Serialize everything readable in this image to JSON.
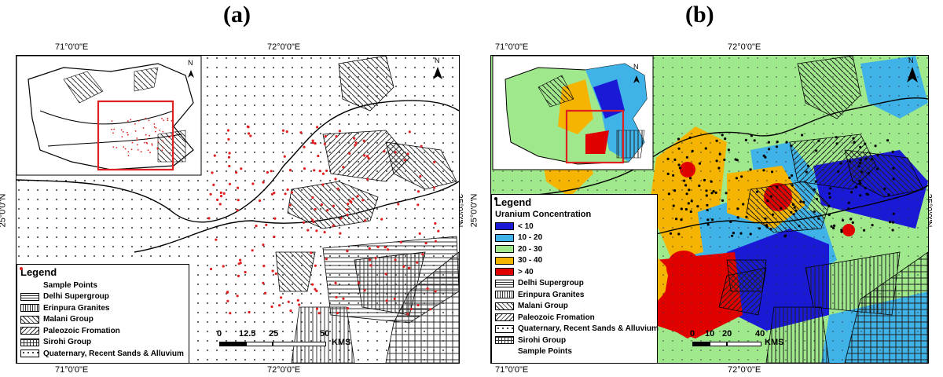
{
  "panels": [
    {
      "label": "(a)",
      "coords": {
        "lon_left": "71°0'0\"E",
        "lon_mid": "72°0'0\"E",
        "lat": "25°0'0\"N"
      },
      "legend": {
        "title": "Legend",
        "items": [
          {
            "label": "Sample Points",
            "symbol": "red-dot"
          },
          {
            "label": "Delhi Supergroup",
            "symbol": "horizontal-lines"
          },
          {
            "label": "Erinpura Granites",
            "symbol": "vertical-lines"
          },
          {
            "label": "Malani Group",
            "symbol": "back-diagonal"
          },
          {
            "label": "Paleozoic Fromation",
            "symbol": "diagonal"
          },
          {
            "label": "Sirohi Group",
            "symbol": "crosshatch"
          },
          {
            "label": "Quaternary, Recent Sands & Alluvium",
            "symbol": "dots"
          }
        ]
      },
      "scale": {
        "ticks": [
          "0",
          "12.5",
          "25",
          "50"
        ],
        "unit": "KMS"
      },
      "north": "N"
    },
    {
      "label": "(b)",
      "coords": {
        "lon_left": "71°0'0\"E",
        "lon_mid": "72°0'0\"E",
        "lat": "25°0'0\"N"
      },
      "legend": {
        "title": "Legend",
        "subtitle": "Uranium Concentration",
        "concentration": [
          {
            "label": "< 10",
            "color": "#1a1ad6"
          },
          {
            "label": "10 - 20",
            "color": "#3fb2e8"
          },
          {
            "label": "20 - 30",
            "color": "#9fe88c"
          },
          {
            "label": "30 - 40",
            "color": "#f5b400"
          },
          {
            "label": "> 40",
            "color": "#e00000"
          }
        ],
        "items": [
          {
            "label": "Delhi Supergroup",
            "symbol": "horizontal-lines"
          },
          {
            "label": "Erinpura Granites",
            "symbol": "vertical-lines"
          },
          {
            "label": "Malani Group",
            "symbol": "back-diagonal"
          },
          {
            "label": "Paleozoic Fromation",
            "symbol": "diagonal"
          },
          {
            "label": "Quaternary, Recent Sands & Alluvium",
            "symbol": "dots"
          },
          {
            "label": "Sirohi Group",
            "symbol": "crosshatch"
          },
          {
            "label": "Sample Points",
            "symbol": "black-dot"
          }
        ]
      },
      "scale": {
        "ticks": [
          "0",
          "10",
          "20",
          "40"
        ],
        "unit": "KMS"
      },
      "north": "N"
    }
  ],
  "colors": {
    "sample_red": "#e02020",
    "sample_black": "#000000",
    "inset_frame": "#e02020"
  }
}
